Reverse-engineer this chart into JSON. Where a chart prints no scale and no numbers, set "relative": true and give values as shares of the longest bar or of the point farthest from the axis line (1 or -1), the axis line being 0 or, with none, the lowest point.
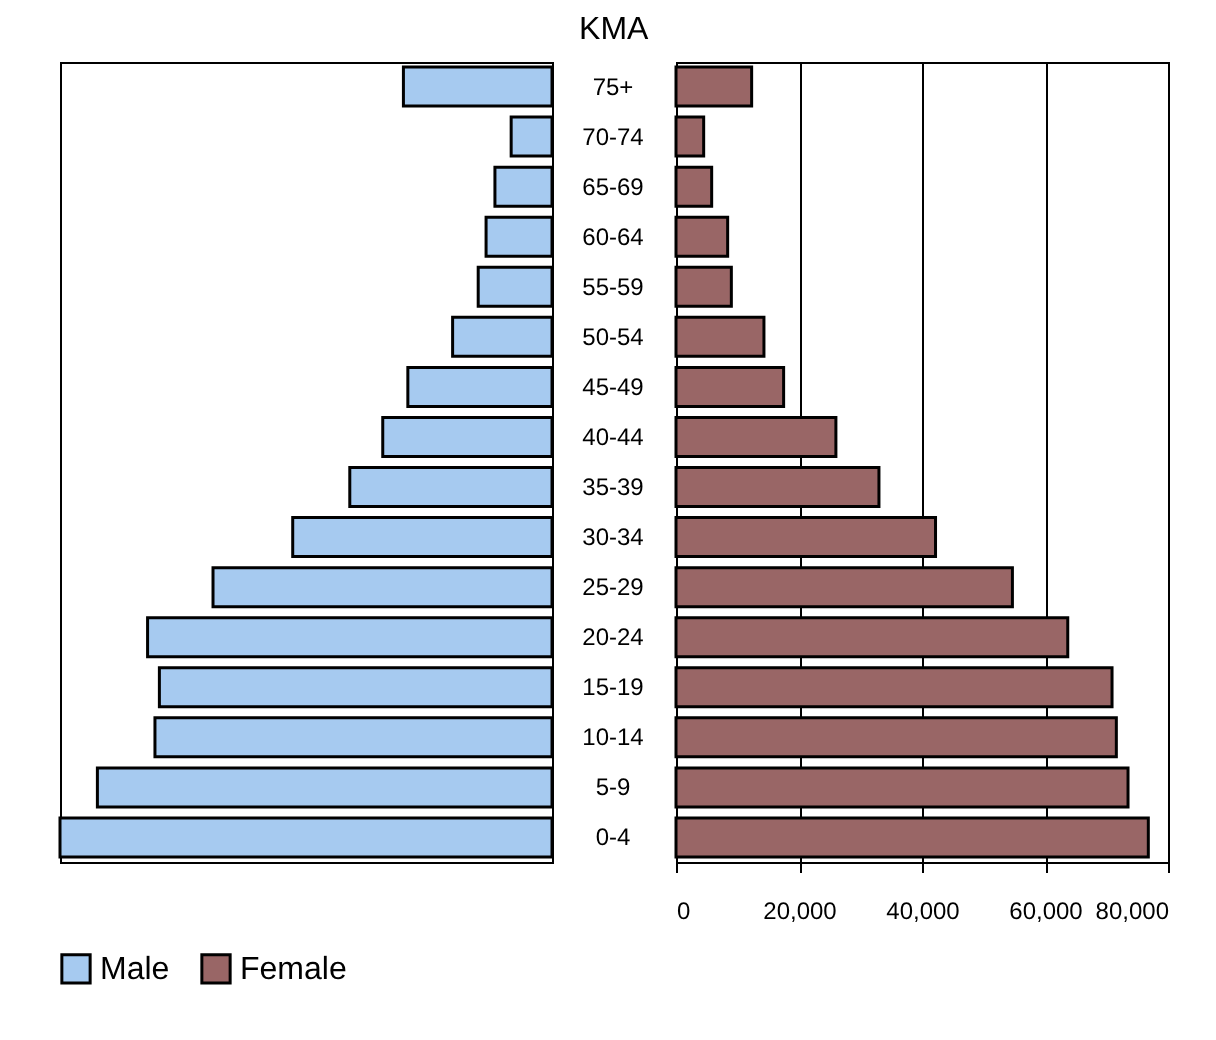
{
  "chart_data": [
    {
      "type": "bar",
      "title": "KMA",
      "orientation": "horizontal",
      "categories": [
        "75+",
        "70-74",
        "65-69",
        "60-64",
        "55-59",
        "50-54",
        "45-49",
        "40-44",
        "35-39",
        "30-34",
        "25-29",
        "20-24",
        "15-19",
        "10-14",
        "5-9",
        "0-4"
      ],
      "relative": true,
      "tick_labels": "y",
      "legend": "bottom left",
      "series": [
        {
          "name": "Male",
          "color": "#a6caf0",
          "values": [
            0.302,
            0.083,
            0.116,
            0.134,
            0.15,
            0.202,
            0.293,
            0.344,
            0.411,
            0.527,
            0.689,
            0.822,
            0.798,
            0.807,
            0.924,
            1
          ]
        }
      ]
    },
    {
      "type": "bar",
      "orientation": "horizontal",
      "xlim": [
        0,
        80000
      ],
      "xticks": [
        0,
        {
          "value": 20000,
          "label": "20,000"
        },
        {
          "value": 40000,
          "label": "40,000"
        },
        {
          "value": 60000,
          "label": "60,000"
        },
        {
          "value": 80000,
          "label": "80,000"
        }
      ],
      "tick_labels": "x",
      "grid": "x",
      "series": [
        {
          "name": "Female",
          "color": "#996666",
          "values": [
            12300,
            4500,
            5800,
            8400,
            9000,
            14300,
            17500,
            26000,
            33000,
            42200,
            54700,
            63700,
            70900,
            71600,
            73500,
            76800
          ]
        }
      ]
    }
  ]
}
